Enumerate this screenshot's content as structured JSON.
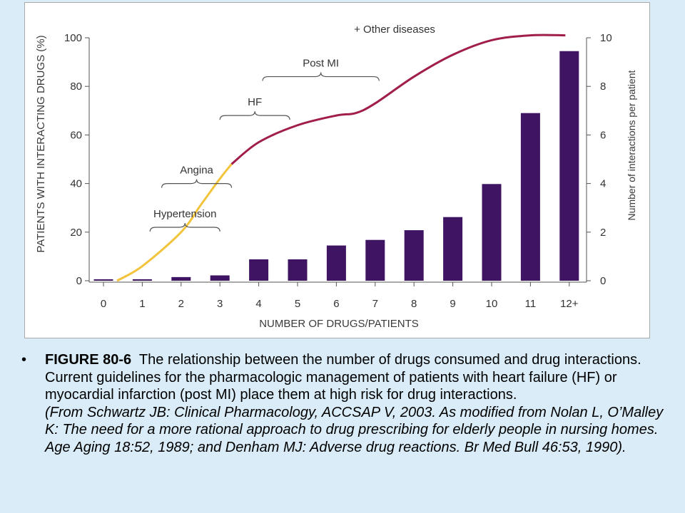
{
  "chart_data": {
    "type": "bar",
    "categories": [
      "0",
      "1",
      "2",
      "3",
      "4",
      "5",
      "6",
      "7",
      "8",
      "9",
      "10",
      "11",
      "12+"
    ],
    "xlabel": "NUMBER OF DRUGS/PATIENTS",
    "ylabel_left": "PATIENTS WITH INTERACTING DRUGS (%)",
    "ylabel_right": "Number of interactions per patient",
    "left_axis": {
      "range": [
        0,
        100
      ],
      "ticks": [
        0,
        20,
        40,
        60,
        80,
        100
      ]
    },
    "right_axis": {
      "range": [
        0,
        10
      ],
      "ticks": [
        0,
        2,
        4,
        6,
        8,
        10
      ]
    },
    "bar_series": {
      "axis": "right",
      "color": "#3f1462",
      "values": [
        0.05,
        0.06,
        0.15,
        0.22,
        0.88,
        0.88,
        1.45,
        1.68,
        2.08,
        2.62,
        3.98,
        6.9,
        9.45
      ]
    },
    "curve": {
      "axis": "left",
      "x": [
        0.35,
        1,
        2,
        2.5,
        3,
        3.3,
        4,
        5,
        6,
        6.5,
        7,
        8,
        9,
        10,
        11,
        11.9
      ],
      "y": [
        0,
        6,
        20,
        31,
        42,
        48,
        57,
        64,
        68,
        69,
        73,
        84,
        93,
        99,
        101,
        101
      ],
      "color_low": "#f2c43c",
      "color_high": "#a11d4a",
      "color_change_x": 3.3
    },
    "annotations": [
      {
        "text": "Hypertension",
        "x_start": 1.2,
        "x_end": 3.0,
        "y": 22
      },
      {
        "text": "Angina",
        "x_start": 1.5,
        "x_end": 3.3,
        "y": 40
      },
      {
        "text": "HF",
        "x_start": 3.0,
        "x_end": 4.8,
        "y": 68
      },
      {
        "text": "Post MI",
        "x_start": 4.1,
        "x_end": 7.1,
        "y": 84
      },
      {
        "text": "+ Other diseases",
        "x": 7.5,
        "y": 102
      }
    ]
  },
  "caption": {
    "bullet": "•",
    "figure_label": "FIGURE 80-6",
    "text": "The relationship between the number of drugs consumed and drug interactions. Current guidelines for the pharmacologic management of patients with heart failure (HF) or myocardial infarction (post MI) place them at high risk for drug interactions.",
    "source": "(From Schwartz JB: Clinical Pharmacology, ACCSAP V, 2003. As modified from Nolan L, O’Malley K: The need for a more rational approach to drug prescribing for elderly people in nursing homes. Age Aging 18:52, 1989; and Denham MJ: Adverse drug reactions. Br Med Bull 46:53, 1990)."
  }
}
